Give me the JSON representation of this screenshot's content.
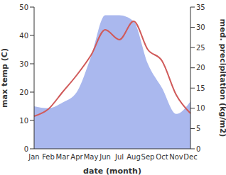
{
  "chart_data": {
    "type": "line",
    "xlabel": "date (month)",
    "ylabel": "max temp (C)",
    "y2label": "med. precipitation (kg/m2)",
    "categories": [
      "Jan",
      "Feb",
      "Mar",
      "Apr",
      "May",
      "Jun",
      "Jul",
      "Aug",
      "Sep",
      "Oct",
      "Nov",
      "Dec"
    ],
    "ylim": [
      0,
      50
    ],
    "yticks": [
      0,
      10,
      20,
      30,
      40,
      50
    ],
    "y2lim": [
      0,
      35
    ],
    "y2ticks": [
      0,
      5,
      10,
      15,
      20,
      25,
      30,
      35
    ],
    "series": [
      {
        "type": "area",
        "axis": "y2",
        "color": "#aab8ee",
        "values": [
          10.5,
          10,
          11.4,
          14,
          22.7,
          33,
          33,
          31.5,
          21,
          15,
          8.6,
          11.7
        ]
      },
      {
        "type": "line",
        "color": "#d05a5a",
        "values": [
          11.5,
          14,
          20,
          26,
          33,
          42,
          38.5,
          45,
          35,
          31,
          19,
          12.5
        ]
      }
    ]
  }
}
